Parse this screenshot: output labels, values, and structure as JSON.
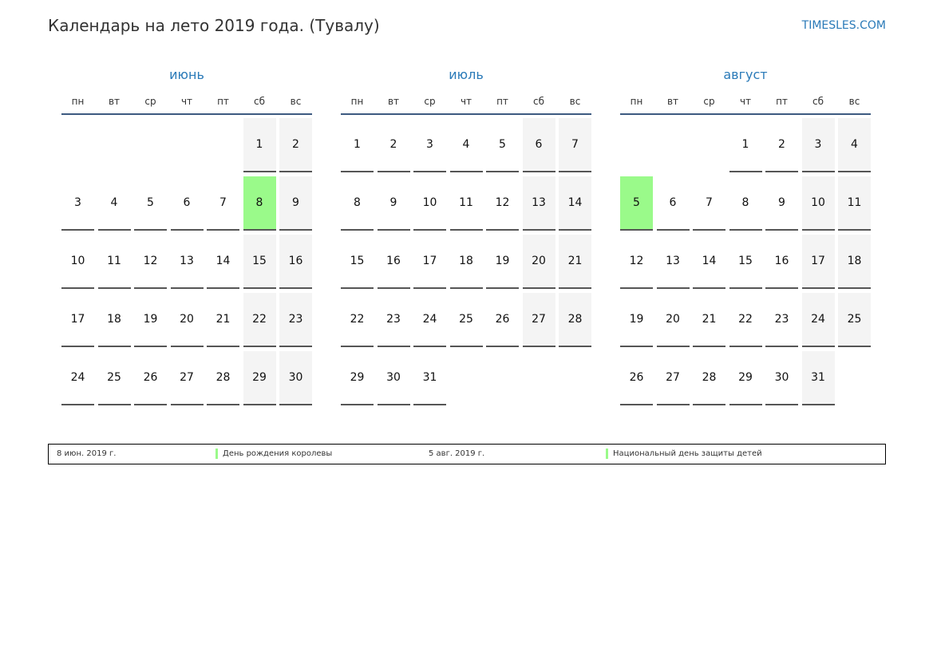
{
  "header": {
    "title": "Календарь на лето 2019 года. (Тувалу)",
    "site": "TIMESLES.COM"
  },
  "colors": {
    "accent": "#2a7ab8",
    "holiday": "#9afa8a",
    "weekend": "#f4f4f4"
  },
  "weekdays": [
    "пн",
    "вт",
    "ср",
    "чт",
    "пт",
    "сб",
    "вс"
  ],
  "months": [
    {
      "name": "июнь",
      "holidays": [
        8
      ],
      "weeks": [
        [
          null,
          null,
          null,
          null,
          null,
          1,
          2
        ],
        [
          3,
          4,
          5,
          6,
          7,
          8,
          9
        ],
        [
          10,
          11,
          12,
          13,
          14,
          15,
          16
        ],
        [
          17,
          18,
          19,
          20,
          21,
          22,
          23
        ],
        [
          24,
          25,
          26,
          27,
          28,
          29,
          30
        ]
      ]
    },
    {
      "name": "июль",
      "holidays": [],
      "weeks": [
        [
          1,
          2,
          3,
          4,
          5,
          6,
          7
        ],
        [
          8,
          9,
          10,
          11,
          12,
          13,
          14
        ],
        [
          15,
          16,
          17,
          18,
          19,
          20,
          21
        ],
        [
          22,
          23,
          24,
          25,
          26,
          27,
          28
        ],
        [
          29,
          30,
          31,
          null,
          null,
          null,
          null
        ]
      ]
    },
    {
      "name": "август",
      "holidays": [
        5
      ],
      "weeks": [
        [
          null,
          null,
          null,
          1,
          2,
          3,
          4
        ],
        [
          5,
          6,
          7,
          8,
          9,
          10,
          11
        ],
        [
          12,
          13,
          14,
          15,
          16,
          17,
          18
        ],
        [
          19,
          20,
          21,
          22,
          23,
          24,
          25
        ],
        [
          26,
          27,
          28,
          29,
          30,
          31,
          null
        ]
      ]
    }
  ],
  "legend": [
    {
      "date": "8 июн. 2019 г.",
      "name": "День рождения королевы"
    },
    {
      "date": "5 авг. 2019 г.",
      "name": "Национальный день защиты детей"
    }
  ]
}
